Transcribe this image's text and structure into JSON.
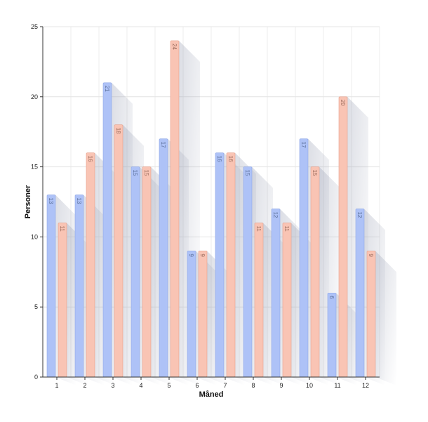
{
  "chart_data": {
    "type": "bar",
    "xlabel": "Måned",
    "ylabel": "Personer",
    "categories": [
      "1",
      "2",
      "3",
      "4",
      "5",
      "6",
      "7",
      "8",
      "9",
      "10",
      "11",
      "12"
    ],
    "series": [
      {
        "values": [
          13,
          13,
          21,
          15,
          17,
          9,
          16,
          15,
          12,
          17,
          6,
          12
        ],
        "color": "#aec2f7",
        "border": "#8fa8e8",
        "label_color": "#5a6f9a"
      },
      {
        "values": [
          11,
          16,
          18,
          15,
          24,
          9,
          16,
          11,
          11,
          15,
          20,
          9
        ],
        "color": "#f9c4b4",
        "border": "#e8a08a",
        "label_color": "#9a6a5a"
      }
    ],
    "ylim": [
      0,
      25
    ],
    "yticks": [
      0,
      5,
      10,
      15,
      20,
      25
    ],
    "grid": true,
    "data_labels": "rotated-inside-top",
    "bar_shadow": true
  }
}
